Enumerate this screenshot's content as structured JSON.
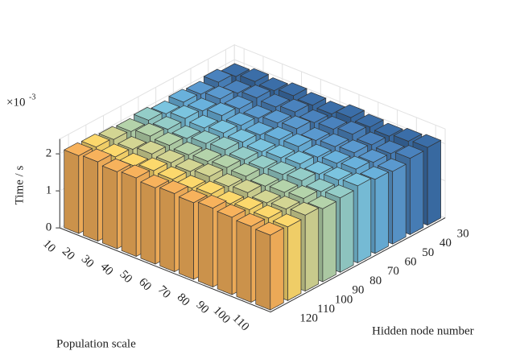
{
  "chart_data": {
    "type": "bar3",
    "x_label": "Population scale",
    "y_label": "Hidden node number",
    "z_label": "Time / s",
    "z_exponent": {
      "base": "×10",
      "power": "-3"
    },
    "x_categories": [
      "10",
      "20",
      "30",
      "40",
      "50",
      "60",
      "70",
      "80",
      "90",
      "100",
      "110"
    ],
    "y_categories": [
      "30",
      "40",
      "50",
      "60",
      "70",
      "80",
      "90",
      "100",
      "110",
      "120"
    ],
    "colors": [
      "#3b6ea8",
      "#4a82bd",
      "#5a99cf",
      "#69b1dc",
      "#7bc4df",
      "#94cdc8",
      "#b4d3aa",
      "#d3d593",
      "#fcd86c",
      "#f7b25c"
    ],
    "values": [
      [
        1.95,
        2.02,
        1.98,
        2.05,
        2.0,
        1.97,
        2.08,
        2.03,
        1.99,
        2.06,
        2.1
      ],
      [
        2.05,
        1.96,
        2.04,
        2.0,
        2.07,
        1.99,
        2.02,
        2.09,
        2.01,
        1.98,
        2.06
      ],
      [
        1.98,
        2.06,
        2.0,
        1.95,
        2.03,
        2.08,
        1.97,
        2.01,
        2.05,
        2.0,
        1.96
      ],
      [
        2.02,
        1.99,
        2.07,
        2.01,
        1.96,
        2.04,
        2.06,
        1.98,
        2.02,
        2.07,
        2.0
      ],
      [
        1.96,
        2.04,
        1.99,
        2.06,
        2.02,
        1.97,
        2.01,
        2.05,
        1.98,
        2.03,
        2.08
      ],
      [
        2.04,
        2.0,
        1.96,
        2.03,
        2.07,
        2.01,
        1.98,
        2.02,
        2.06,
        1.97,
        2.01
      ],
      [
        1.99,
        2.07,
        2.03,
        1.98,
        2.01,
        2.05,
        2.02,
        1.96,
        2.0,
        2.04,
        1.97
      ],
      [
        2.03,
        1.97,
        2.05,
        2.02,
        1.99,
        2.06,
        2.0,
        2.04,
        1.97,
        2.01,
        2.05
      ],
      [
        2.08,
        2.02,
        1.98,
        2.06,
        2.03,
        2.0,
        2.05,
        1.99,
        2.04,
        2.02,
        1.99
      ],
      [
        2.1,
        2.14,
        2.08,
        2.12,
        2.06,
        2.11,
        2.07,
        2.13,
        2.09,
        2.05,
        2.02
      ]
    ],
    "zlim": [
      0,
      2.4
    ],
    "zticks": [
      0,
      1,
      2
    ],
    "grid": true
  }
}
